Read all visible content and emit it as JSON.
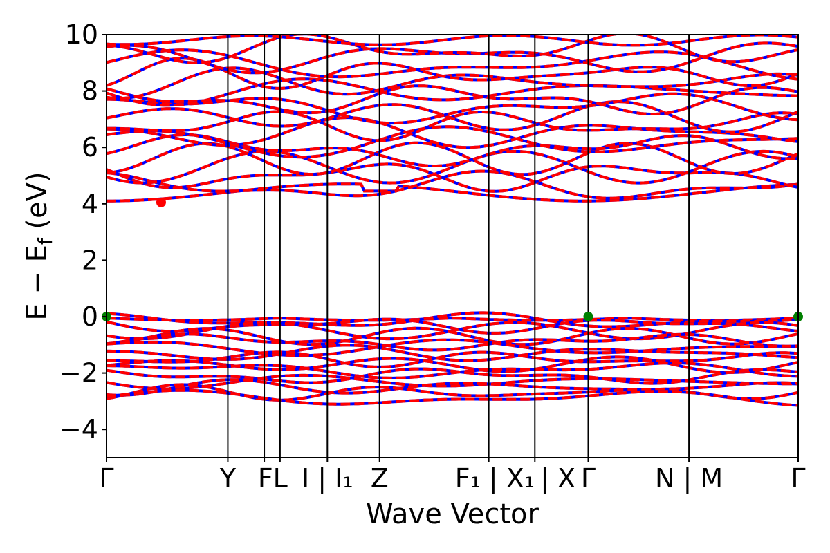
{
  "chart_data": {
    "type": "line",
    "title": "",
    "xlabel": "Wave Vector",
    "ylabel": "E − Ef (eV)",
    "ylabel_parts": {
      "main": "E  −  E",
      "sub": "f",
      "unit": " (eV)"
    },
    "ylim": [
      -5,
      10
    ],
    "yticks": [
      -4,
      -2,
      0,
      2,
      4,
      6,
      8,
      10
    ],
    "ytick_labels": [
      "−4",
      "−2",
      "0",
      "2",
      "4",
      "6",
      "8",
      "10"
    ],
    "kpoint_positions": [
      0,
      1.0,
      1.3,
      1.43,
      1.82,
      2.25,
      3.15,
      3.53,
      3.97,
      4.8,
      5.7
    ],
    "kpoint_labels": [
      "Γ",
      "Y",
      "FL",
      "",
      "I | I₁",
      "Z",
      "F₁ | X₁",
      "| X",
      "Γ",
      "N | M",
      "Γ"
    ],
    "xtick_label_items": [
      {
        "text": "Γ",
        "at": 0
      },
      {
        "text": "Y",
        "at": 1.0
      },
      {
        "text": "FL",
        "at": 1.37
      },
      {
        "text": "I | I₁",
        "at": 1.82
      },
      {
        "text": "Z",
        "at": 2.25
      },
      {
        "text": "F₁ | X₁",
        "at": 3.2
      },
      {
        "text": "| X",
        "at": 3.72
      },
      {
        "text": "Γ",
        "at": 3.97
      },
      {
        "text": "N | M",
        "at": 4.8
      },
      {
        "text": "Γ",
        "at": 5.7
      }
    ],
    "vertical_lines_at": [
      1.0,
      1.3,
      1.43,
      1.82,
      2.25,
      3.15,
      3.53,
      3.97,
      4.8
    ],
    "conduction_band_min": {
      "x": 0.45,
      "y": 4.05,
      "color": "#ff0000"
    },
    "valence_band_max": [
      {
        "x": 0,
        "y": 0.0,
        "color": "#008000"
      },
      {
        "x": 3.97,
        "y": 0.0,
        "color": "#008000"
      },
      {
        "x": 5.7,
        "y": 0.0,
        "color": "#008000"
      }
    ],
    "series": [
      {
        "spin": "up",
        "color": "#0000ff",
        "style": "solid"
      },
      {
        "spin": "down",
        "color": "#ff0000",
        "style": "dashed"
      }
    ],
    "valence_bands_at_gamma": [
      0.0,
      -0.15,
      -0.3,
      -0.5,
      -0.7,
      -0.9,
      -1.1,
      -1.3,
      -1.5,
      -1.7,
      -1.9,
      -2.1,
      -2.3,
      -2.5,
      -2.7,
      -2.9
    ],
    "conduction_bands_at_gamma": [
      4.1,
      4.6,
      5.0,
      5.3,
      5.6,
      5.9,
      6.2,
      6.5,
      6.8,
      7.1,
      7.4,
      7.7,
      8.0,
      8.3,
      8.6,
      8.9,
      9.2,
      9.5,
      9.8
    ],
    "grid": false,
    "legend": "none"
  }
}
